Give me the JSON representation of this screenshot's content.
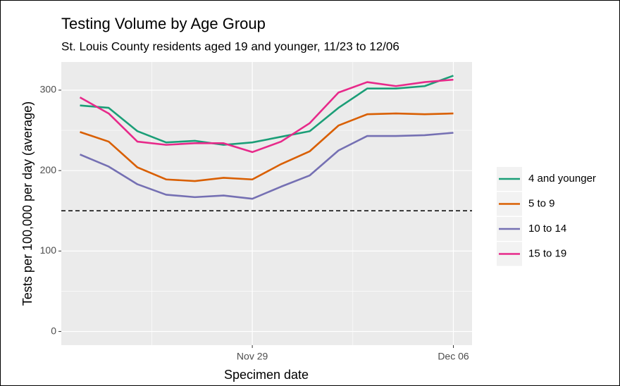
{
  "chart_data": {
    "type": "line",
    "title": "Testing Volume by Age Group",
    "subtitle": "St. Louis County residents aged 19 and younger, 11/23 to 12/06",
    "x_label": "Specimen date",
    "y_label": "Tests per 100,000 per day (average)",
    "categories": [
      null,
      null,
      null,
      null,
      null,
      null,
      "Nov 29",
      null,
      null,
      null,
      null,
      null,
      null,
      "Dec 06"
    ],
    "series": [
      {
        "name": "4 and younger",
        "color": "#1b9e77",
        "values": [
          281,
          278,
          249,
          235,
          237,
          232,
          235,
          242,
          249,
          278,
          302,
          302,
          305,
          318
        ]
      },
      {
        "name": "5 to 9",
        "color": "#d95f02",
        "values": [
          248,
          236,
          204,
          189,
          187,
          191,
          189,
          208,
          224,
          256,
          270,
          271,
          270,
          271
        ]
      },
      {
        "name": "10 to 14",
        "color": "#7570b3",
        "values": [
          220,
          205,
          183,
          170,
          167,
          169,
          165,
          180,
          194,
          225,
          243,
          243,
          244,
          247
        ]
      },
      {
        "name": "15 to 19",
        "color": "#e7298a",
        "values": [
          291,
          271,
          236,
          232,
          234,
          234,
          223,
          236,
          259,
          297,
          310,
          305,
          310,
          313
        ]
      }
    ],
    "reference_line": 150,
    "ylim": [
      -17,
      335
    ],
    "yticks": [
      0,
      100,
      200,
      300
    ],
    "grid": true,
    "legend": "right"
  }
}
